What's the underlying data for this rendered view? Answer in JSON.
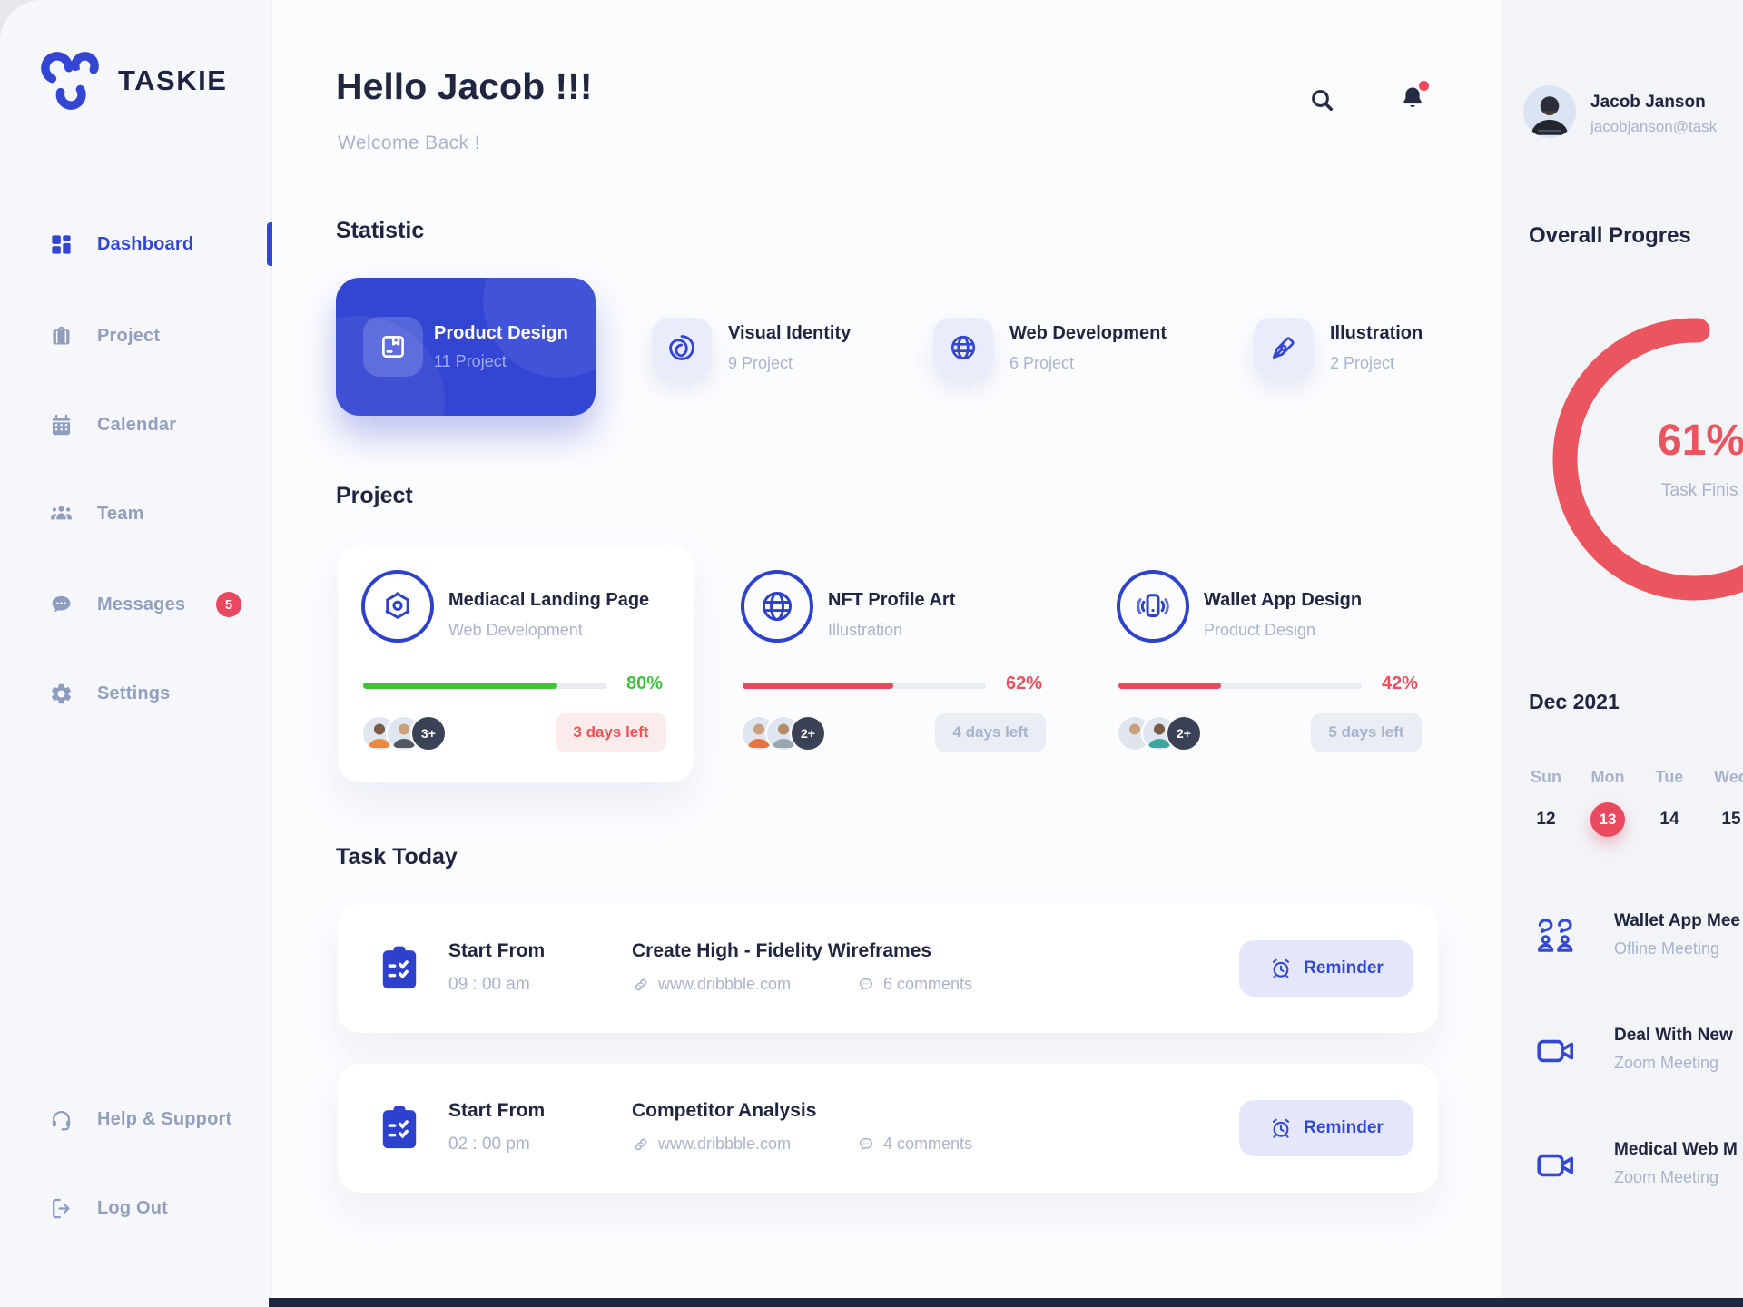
{
  "brand": {
    "name": "TASKIE"
  },
  "sidebar": {
    "items": [
      {
        "label": "Dashboard"
      },
      {
        "label": "Project"
      },
      {
        "label": "Calendar"
      },
      {
        "label": "Team"
      },
      {
        "label": "Messages",
        "badge": "5"
      },
      {
        "label": "Settings"
      }
    ],
    "footer": [
      {
        "label": "Help & Support"
      },
      {
        "label": "Log Out"
      }
    ]
  },
  "header": {
    "greeting": "Hello Jacob !!!",
    "welcome": "Welcome Back !"
  },
  "statistic": {
    "title": "Statistic",
    "cards": [
      {
        "name": "Product Design",
        "count": "11 Project"
      },
      {
        "name": "Visual Identity",
        "count": "9 Project"
      },
      {
        "name": "Web Development",
        "count": "6 Project"
      },
      {
        "name": "Illustration",
        "count": "2 Project"
      }
    ]
  },
  "projects": {
    "title": "Project",
    "cards": [
      {
        "name": "Mediacal Landing Page",
        "category": "Web Development",
        "progress": 80,
        "progress_label": "80%",
        "days_left": "3 days left",
        "more": "3+"
      },
      {
        "name": "NFT Profile Art",
        "category": "Illustration",
        "progress": 62,
        "progress_label": "62%",
        "days_left": "4 days left",
        "more": "2+"
      },
      {
        "name": "Wallet App Design",
        "category": "Product Design",
        "progress": 42,
        "progress_label": "42%",
        "days_left": "5 days left",
        "more": "2+"
      }
    ]
  },
  "tasks": {
    "title": "Task Today",
    "rows": [
      {
        "start_label": "Start From",
        "time": "09 : 00 am",
        "name": "Create High - Fidelity Wireframes",
        "link": "www.dribbble.com",
        "comments": "6 comments",
        "action": "Reminder"
      },
      {
        "start_label": "Start From",
        "time": "02 : 00 pm",
        "name": "Competitor Analysis",
        "link": "www.dribbble.com",
        "comments": "4 comments",
        "action": "Reminder"
      }
    ]
  },
  "profile": {
    "name": "Jacob Janson",
    "email": "jacobjanson@task"
  },
  "overall": {
    "title": "Overall Progres",
    "percent": "61%",
    "caption": "Task Finis"
  },
  "calendar": {
    "month": "Dec 2021",
    "days": [
      "Sun",
      "Mon",
      "Tue",
      "Wed"
    ],
    "dates": [
      "12",
      "13",
      "14",
      "15"
    ],
    "active_date": "13"
  },
  "meetings": [
    {
      "title": "Wallet App Mee",
      "subtitle": "Ofline Meeting"
    },
    {
      "title": "Deal With New",
      "subtitle": "Zoom Meeting"
    },
    {
      "title": "Medical Web M",
      "subtitle": "Zoom Meeting"
    }
  ],
  "colors": {
    "blue": "#3346d3",
    "navy": "#20263f",
    "muted": "#a9b4cc",
    "red": "#e8495f",
    "green": "#3ec435",
    "pink": "#ea5560"
  }
}
